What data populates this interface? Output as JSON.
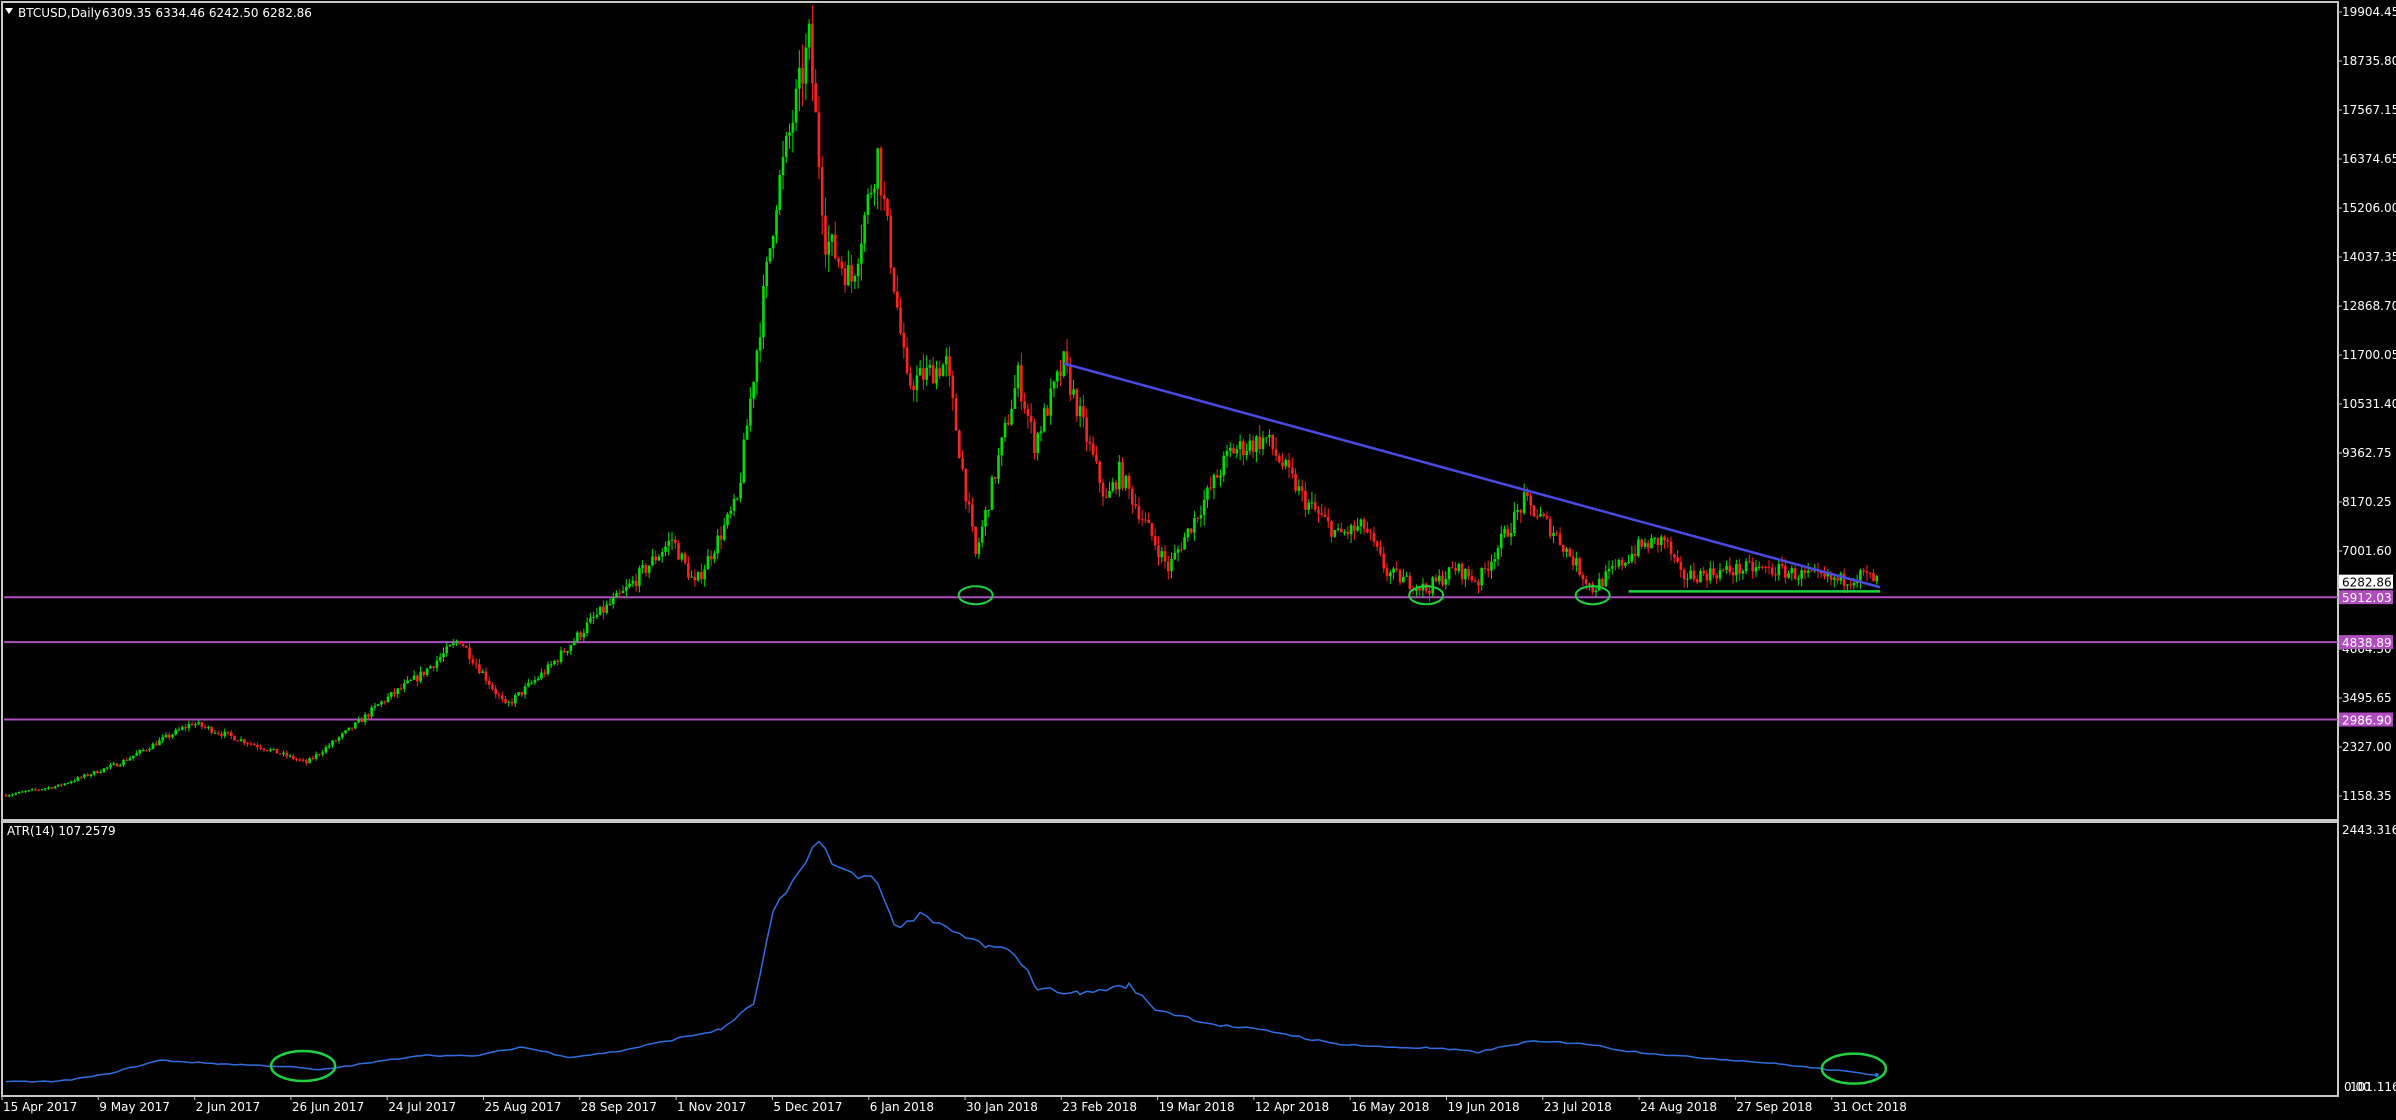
{
  "header": {
    "symbol_label": "BTCUSD,Daily",
    "ohlc": "6309.35 6334.46 6242.50 6282.86"
  },
  "indicator": {
    "label": "ATR(14) 107.2579"
  },
  "colors": {
    "background": "#000000",
    "bull_candle": "#00e000",
    "bear_candle": "#ff2020",
    "trendline": "#4a4ae0",
    "support_line": "#b04cc0",
    "atr_line": "#2f6fe0",
    "marker": "#20d040",
    "frame": "#c0c0c0"
  },
  "chart_data": [
    {
      "type": "candlestick",
      "title": "BTCUSD,Daily",
      "price_axis_ticks": [
        "19904.45",
        "18735.80",
        "17567.15",
        "16374.65",
        "15206.00",
        "14037.35",
        "12868.70",
        "11700.05",
        "10531.40",
        "9362.75",
        "8170.25",
        "7001.60",
        "5833.05",
        "4664.30",
        "3495.65",
        "2327.00",
        "1158.35"
      ],
      "ylim": [
        1158.35,
        19904.45
      ],
      "date_axis_labels": [
        "15 Apr 2017",
        "9 May 2017",
        "2 Jun 2017",
        "26 Jun 2017",
        "24 Jul 2017",
        "25 Aug 2017",
        "28 Sep 2017",
        "1 Nov 2017",
        "5 Dec 2017",
        "6 Jan 2018",
        "30 Jan 2018",
        "23 Feb 2018",
        "19 Mar 2018",
        "12 Apr 2018",
        "16 May 2018",
        "19 Jun 2018",
        "23 Jul 2018",
        "24 Aug 2018",
        "27 Sep 2018",
        "31 Oct 2018"
      ],
      "price_series_anchors": [
        {
          "x": "2017-04-15",
          "y": 1180
        },
        {
          "x": "2017-05-01",
          "y": 1400
        },
        {
          "x": "2017-05-20",
          "y": 1950
        },
        {
          "x": "2017-06-11",
          "y": 2900
        },
        {
          "x": "2017-06-26",
          "y": 2500
        },
        {
          "x": "2017-07-16",
          "y": 1950
        },
        {
          "x": "2017-07-31",
          "y": 2850
        },
        {
          "x": "2017-08-08",
          "y": 3400
        },
        {
          "x": "2017-08-20",
          "y": 4050
        },
        {
          "x": "2017-09-01",
          "y": 4900
        },
        {
          "x": "2017-09-15",
          "y": 3300
        },
        {
          "x": "2017-09-28",
          "y": 4200
        },
        {
          "x": "2017-10-12",
          "y": 5400
        },
        {
          "x": "2017-10-21",
          "y": 6000
        },
        {
          "x": "2017-11-05",
          "y": 7300
        },
        {
          "x": "2017-11-12",
          "y": 6200
        },
        {
          "x": "2017-11-25",
          "y": 8200
        },
        {
          "x": "2017-12-07",
          "y": 15500
        },
        {
          "x": "2017-12-17",
          "y": 19200
        },
        {
          "x": "2017-12-22",
          "y": 14500
        },
        {
          "x": "2017-12-30",
          "y": 13500
        },
        {
          "x": "2018-01-07",
          "y": 16500
        },
        {
          "x": "2018-01-16",
          "y": 11000
        },
        {
          "x": "2018-01-28",
          "y": 11500
        },
        {
          "x": "2018-02-06",
          "y": 6900
        },
        {
          "x": "2018-02-19",
          "y": 11200
        },
        {
          "x": "2018-02-24",
          "y": 9600
        },
        {
          "x": "2018-03-05",
          "y": 11500
        },
        {
          "x": "2018-03-18",
          "y": 8200
        },
        {
          "x": "2018-03-22",
          "y": 8900
        },
        {
          "x": "2018-04-06",
          "y": 6600
        },
        {
          "x": "2018-04-25",
          "y": 9400
        },
        {
          "x": "2018-05-06",
          "y": 9700
        },
        {
          "x": "2018-05-18",
          "y": 8200
        },
        {
          "x": "2018-05-28",
          "y": 7400
        },
        {
          "x": "2018-06-05",
          "y": 7600
        },
        {
          "x": "2018-06-12",
          "y": 6500
        },
        {
          "x": "2018-06-24",
          "y": 6100
        },
        {
          "x": "2018-07-03",
          "y": 6600
        },
        {
          "x": "2018-07-10",
          "y": 6300
        },
        {
          "x": "2018-07-24",
          "y": 8200
        },
        {
          "x": "2018-08-02",
          "y": 7500
        },
        {
          "x": "2018-08-14",
          "y": 6100
        },
        {
          "x": "2018-08-28",
          "y": 7100
        },
        {
          "x": "2018-09-05",
          "y": 7300
        },
        {
          "x": "2018-09-10",
          "y": 6400
        },
        {
          "x": "2018-09-20",
          "y": 6500
        },
        {
          "x": "2018-10-01",
          "y": 6600
        },
        {
          "x": "2018-10-10",
          "y": 6550
        },
        {
          "x": "2018-10-20",
          "y": 6400
        },
        {
          "x": "2018-10-28",
          "y": 6300
        },
        {
          "x": "2018-11-05",
          "y": 6450
        },
        {
          "x": "2018-11-09",
          "y": 6282.86
        }
      ],
      "last_price_tag": "6282.86",
      "horizontal_levels": [
        "5912.03",
        "4838.89",
        "2986.90"
      ],
      "trendline": {
        "from": {
          "x": "2018-03-05",
          "y": 11500
        },
        "to": {
          "x": "2018-11-10",
          "y": 6150
        }
      },
      "support_line": {
        "from": {
          "x": "2018-08-25",
          "y": 6050
        },
        "to": {
          "x": "2018-11-10",
          "y": 6050
        }
      },
      "marked_lows": [
        {
          "x": "2018-02-06",
          "y": 5912.03
        },
        {
          "x": "2018-06-24",
          "y": 5912.03
        },
        {
          "x": "2018-08-14",
          "y": 5912.03
        }
      ]
    },
    {
      "type": "line",
      "title": "ATR(14) 107.2579",
      "axis_ticks": [
        "2443.3162",
        "0.00",
        "101.1162"
      ],
      "ylim": [
        0,
        2443.3162
      ],
      "series": [
        {
          "values": [
            {
              "x": "2017-04-15",
              "y": 40
            },
            {
              "x": "2017-05-01",
              "y": 45
            },
            {
              "x": "2017-05-15",
              "y": 110
            },
            {
              "x": "2017-06-01",
              "y": 250
            },
            {
              "x": "2017-06-20",
              "y": 215
            },
            {
              "x": "2017-07-10",
              "y": 190
            },
            {
              "x": "2017-07-20",
              "y": 155
            },
            {
              "x": "2017-08-01",
              "y": 210
            },
            {
              "x": "2017-08-20",
              "y": 300
            },
            {
              "x": "2017-09-05",
              "y": 290
            },
            {
              "x": "2017-09-20",
              "y": 380
            },
            {
              "x": "2017-10-05",
              "y": 280
            },
            {
              "x": "2017-10-20",
              "y": 340
            },
            {
              "x": "2017-11-05",
              "y": 450
            },
            {
              "x": "2017-11-20",
              "y": 550
            },
            {
              "x": "2017-11-30",
              "y": 800
            },
            {
              "x": "2017-12-06",
              "y": 1700
            },
            {
              "x": "2017-12-14",
              "y": 2050
            },
            {
              "x": "2017-12-20",
              "y": 2440
            },
            {
              "x": "2017-12-24",
              "y": 2150
            },
            {
              "x": "2017-12-30",
              "y": 2050
            },
            {
              "x": "2018-01-07",
              "y": 2020
            },
            {
              "x": "2018-01-12",
              "y": 1550
            },
            {
              "x": "2018-01-20",
              "y": 1650
            },
            {
              "x": "2018-01-30",
              "y": 1500
            },
            {
              "x": "2018-02-10",
              "y": 1350
            },
            {
              "x": "2018-02-18",
              "y": 1300
            },
            {
              "x": "2018-02-25",
              "y": 950
            },
            {
              "x": "2018-03-10",
              "y": 900
            },
            {
              "x": "2018-03-25",
              "y": 980
            },
            {
              "x": "2018-04-02",
              "y": 750
            },
            {
              "x": "2018-04-20",
              "y": 600
            },
            {
              "x": "2018-05-10",
              "y": 520
            },
            {
              "x": "2018-05-25",
              "y": 420
            },
            {
              "x": "2018-06-10",
              "y": 380
            },
            {
              "x": "2018-06-25",
              "y": 370
            },
            {
              "x": "2018-07-10",
              "y": 330
            },
            {
              "x": "2018-07-25",
              "y": 430
            },
            {
              "x": "2018-08-10",
              "y": 420
            },
            {
              "x": "2018-08-25",
              "y": 340
            },
            {
              "x": "2018-09-10",
              "y": 290
            },
            {
              "x": "2018-09-25",
              "y": 255
            },
            {
              "x": "2018-10-10",
              "y": 215
            },
            {
              "x": "2018-10-25",
              "y": 160
            },
            {
              "x": "2018-11-09",
              "y": 107.2579
            }
          ]
        }
      ],
      "marked_points": [
        {
          "x": "2017-07-15",
          "y": 175
        },
        {
          "x": "2018-11-02",
          "y": 150
        }
      ]
    }
  ]
}
